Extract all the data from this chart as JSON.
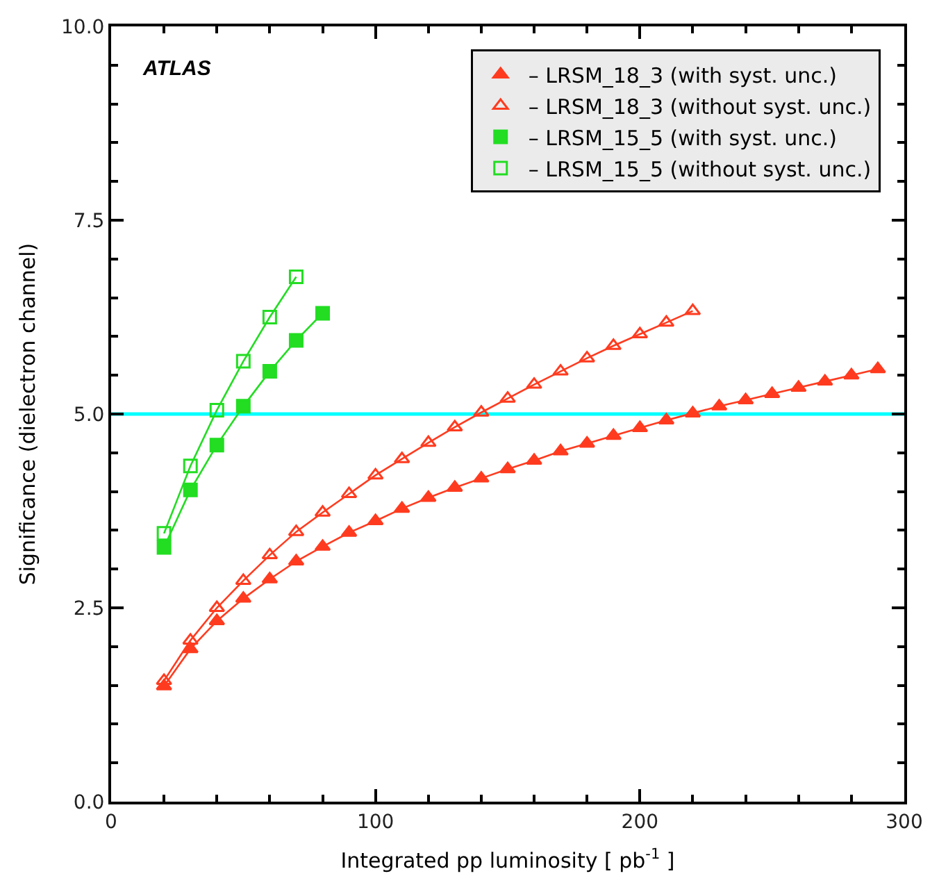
{
  "chart_data": {
    "type": "line",
    "xlabel": "Integrated pp luminosity [ pb$^{-1}$ ]",
    "ylabel": "Significance (dielectron channel)",
    "xlim": [
      0,
      300
    ],
    "xticks": [
      0,
      100,
      200,
      300
    ],
    "ylim": [
      0,
      10
    ],
    "yticks": [
      {
        "value": 0,
        "label": "0.0"
      },
      2.5,
      {
        "value": 5,
        "label": "5.0"
      },
      7.5,
      {
        "value": 10,
        "label": "10.0"
      }
    ],
    "grid": false,
    "legend": "top right",
    "legend_title": null,
    "annotations": [
      "ATLAS"
    ],
    "ref_lines": [
      {
        "axis": "y",
        "value": 5,
        "color": "#00ffff"
      }
    ],
    "series": [
      {
        "name": "– LRSM_18_3 (with syst. unc.)",
        "color": "#ff3b1f",
        "marker": "triangle",
        "x": [
          20,
          30,
          40,
          50,
          60,
          70,
          80,
          90,
          100,
          110,
          120,
          130,
          140,
          150,
          160,
          170,
          180,
          190,
          200,
          210,
          220,
          230,
          240,
          250,
          260,
          270,
          280,
          290
        ],
        "values": [
          1.49,
          1.97,
          2.33,
          2.62,
          2.87,
          3.1,
          3.29,
          3.47,
          3.62,
          3.78,
          3.92,
          4.05,
          4.17,
          4.29,
          4.4,
          4.52,
          4.62,
          4.72,
          4.82,
          4.92,
          5.01,
          5.1,
          5.18,
          5.26,
          5.34,
          5.42,
          5.5,
          5.58
        ]
      },
      {
        "name": "– LRSM_18_3 (without syst. unc.)",
        "color": "#ff3b1f",
        "marker": "triangle-open",
        "x": [
          20,
          30,
          40,
          50,
          60,
          70,
          80,
          90,
          100,
          110,
          120,
          130,
          140,
          150,
          160,
          170,
          180,
          190,
          200,
          210,
          220
        ],
        "values": [
          1.56,
          2.08,
          2.5,
          2.85,
          3.18,
          3.48,
          3.73,
          3.97,
          4.21,
          4.42,
          4.63,
          4.83,
          5.02,
          5.2,
          5.38,
          5.55,
          5.72,
          5.88,
          6.03,
          6.18,
          6.33
        ]
      },
      {
        "name": "– LRSM_15_5 (with syst. unc.)",
        "color": "#22dd22",
        "marker": "square",
        "x": [
          20,
          30,
          40,
          50,
          60,
          70,
          80
        ],
        "values": [
          3.28,
          4.02,
          4.6,
          5.1,
          5.55,
          5.95,
          6.3
        ]
      },
      {
        "name": "– LRSM_15_5 (without syst. unc.)",
        "color": "#22dd22",
        "marker": "square-open",
        "x": [
          20,
          30,
          40,
          50,
          60,
          70
        ],
        "values": [
          3.46,
          4.33,
          5.05,
          5.68,
          6.25,
          6.77
        ]
      }
    ]
  }
}
